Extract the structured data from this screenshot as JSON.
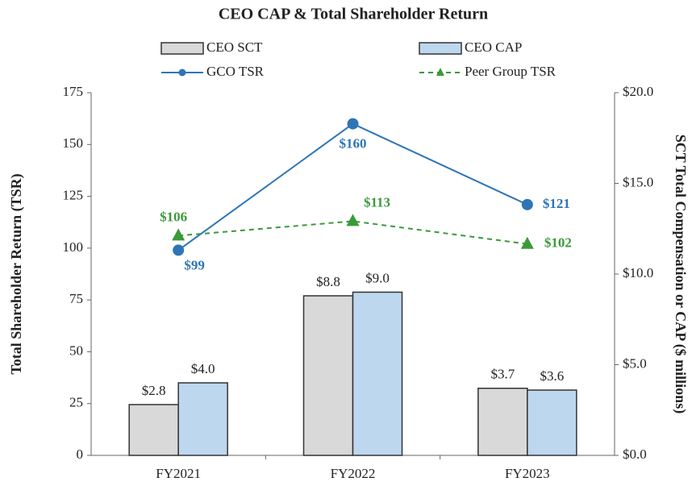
{
  "chart_data": {
    "type": "bar-line",
    "title": "CEO CAP & Total Shareholder Return",
    "ylabel": "Total Shareholder Return (TSR)",
    "y2label": "SCT Total Compensation or CAP ($ millions)",
    "categories": [
      "FY2021",
      "FY2022",
      "FY2023"
    ],
    "ylim": [
      0,
      175
    ],
    "yticks": [
      0,
      25,
      50,
      75,
      100,
      125,
      150,
      175
    ],
    "y2lim": [
      0,
      20
    ],
    "y2ticks": [
      {
        "value": 0,
        "label": "$0.0"
      },
      {
        "value": 5,
        "label": "$5.0"
      },
      {
        "value": 10,
        "label": "$10.0"
      },
      {
        "value": 15,
        "label": "$15.0"
      },
      {
        "value": 20,
        "label": "$20.0"
      }
    ],
    "series": [
      {
        "name": "CEO SCT",
        "kind": "bar",
        "axis": "y2",
        "color": "#d9d9d9",
        "values": [
          2.8,
          8.8,
          3.7
        ],
        "value_labels": [
          "$2.8",
          "$8.8",
          "$3.7"
        ]
      },
      {
        "name": "CEO CAP",
        "kind": "bar",
        "axis": "y2",
        "color": "#bdd7ee",
        "values": [
          4.0,
          9.0,
          3.6
        ],
        "value_labels": [
          "$4.0",
          "$9.0",
          "$3.6"
        ]
      },
      {
        "name": "GCO TSR",
        "kind": "line",
        "color": "#2e75b6",
        "values": [
          99,
          160,
          121
        ],
        "value_labels": [
          "$99",
          "$160",
          "$121"
        ]
      },
      {
        "name": "Peer Group TSR",
        "kind": "line",
        "dashed": true,
        "color": "#3a9a3a",
        "values": [
          106,
          113,
          102
        ],
        "value_labels": [
          "$106",
          "$113",
          "$102"
        ]
      }
    ]
  }
}
